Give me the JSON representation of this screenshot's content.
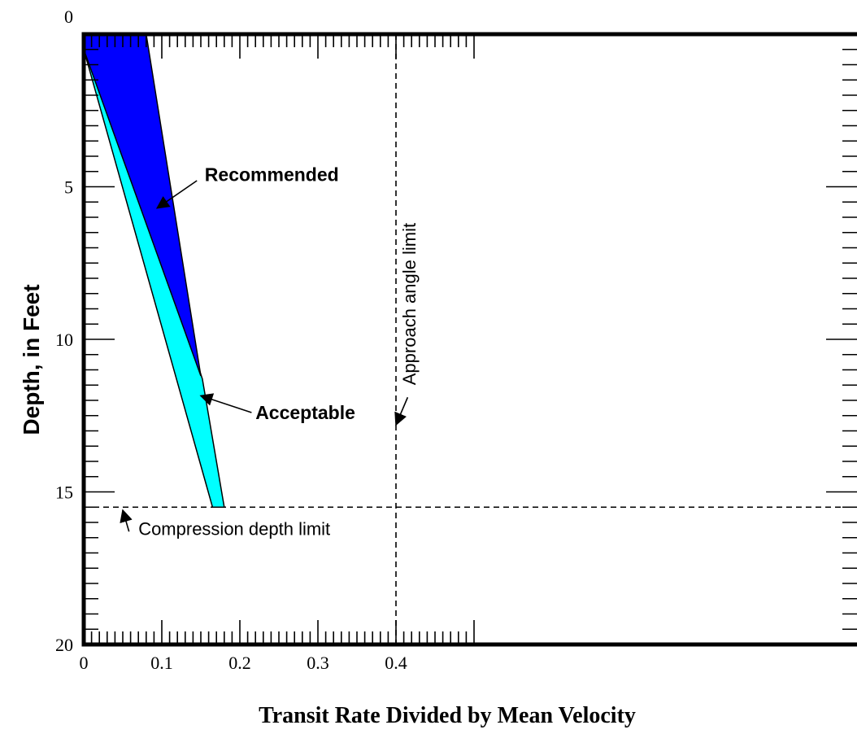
{
  "chart_data": {
    "type": "area",
    "xlabel": "Transit Rate Divided by Mean Velocity",
    "ylabel": "Depth, in Feet",
    "xlim": [
      0,
      0.5
    ],
    "ylim": [
      0,
      20
    ],
    "y_inverted": true,
    "x_ticks": [
      0,
      0.1,
      0.2,
      0.3,
      0.4
    ],
    "x_tick_labels": [
      "0",
      "0.1",
      "0.2",
      "0.3",
      "0.4"
    ],
    "y_ticks": [
      0,
      5,
      10,
      15,
      20
    ],
    "y_tick_labels": [
      "0",
      "5",
      "10",
      "15",
      "20"
    ],
    "grid": false,
    "series": [
      {
        "name": "Acceptable",
        "color": "#00ffff",
        "polygon": [
          [
            0,
            0
          ],
          [
            0.008,
            0
          ],
          [
            0.152,
            11.3
          ],
          [
            0.18,
            15.5
          ],
          [
            0.165,
            15.5
          ],
          [
            0,
            0.5
          ]
        ]
      },
      {
        "name": "Recommended",
        "color": "#0000ff",
        "polygon": [
          [
            0,
            0
          ],
          [
            0.08,
            0
          ],
          [
            0.15,
            11.2
          ],
          [
            0,
            0.5
          ]
        ]
      }
    ],
    "reference_lines": [
      {
        "orientation": "horizontal",
        "value": 15.5,
        "label": "Compression depth limit",
        "style": "dashed"
      },
      {
        "orientation": "vertical",
        "value": 0.4,
        "label": "Approach angle limit",
        "style": "dashed"
      }
    ],
    "annotations": [
      {
        "text": "Recommended",
        "bold": true,
        "text_at": [
          0.155,
          4.6
        ],
        "arrow_from": [
          0.145,
          4.8
        ],
        "arrow_to": [
          0.094,
          5.7
        ]
      },
      {
        "text": "Acceptable",
        "bold": true,
        "text_at": [
          0.22,
          12.4
        ],
        "arrow_from": [
          0.215,
          12.4
        ],
        "arrow_to": [
          0.15,
          11.85
        ]
      },
      {
        "text": "Compression depth limit",
        "bold": false,
        "text_at": [
          0.07,
          16.2
        ],
        "arrow_from": [
          0.058,
          16.3
        ],
        "arrow_to": [
          0.05,
          15.6
        ]
      },
      {
        "text": "Approach angle limit",
        "bold": false,
        "text_at": [
          0.425,
          11.5
        ],
        "arrow_from": [
          0.415,
          11.9
        ],
        "arrow_to": [
          0.4,
          12.8
        ]
      }
    ]
  }
}
